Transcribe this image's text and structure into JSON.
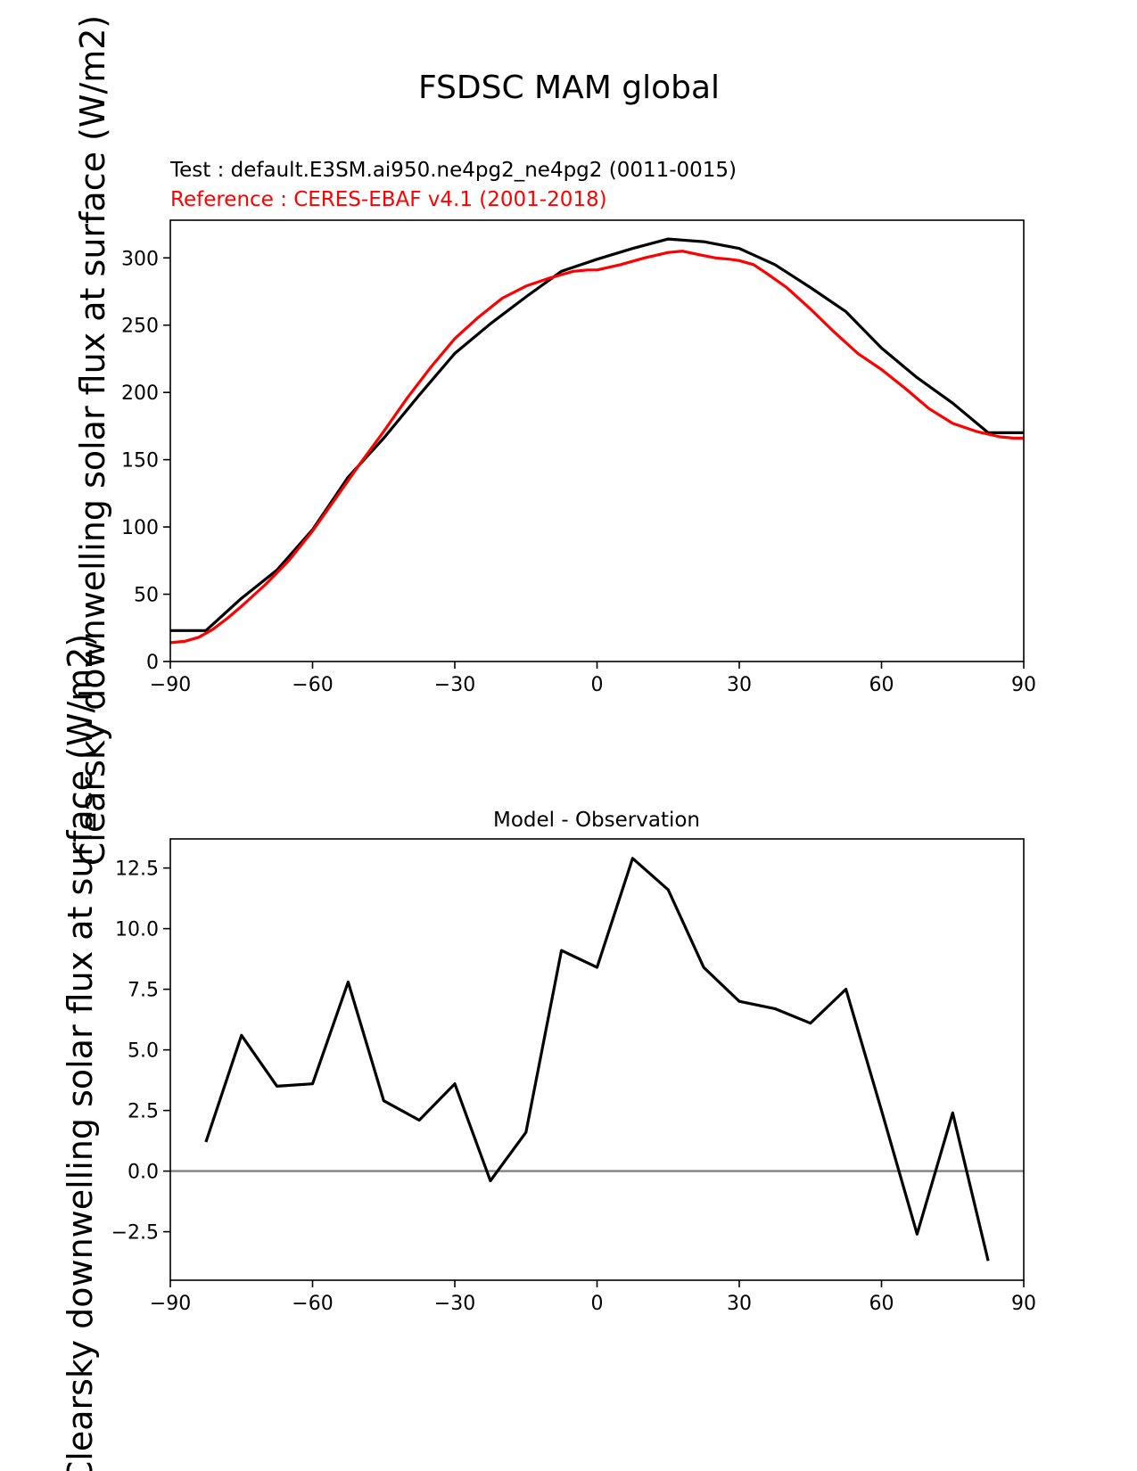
{
  "figure": {
    "title": "FSDSC MAM global"
  },
  "chart_data": [
    {
      "type": "line",
      "test_label": "Test : default.E3SM.ai950.ne4pg2_ne4pg2 (0011-0015)",
      "reference_label": "Reference : CERES-EBAF v4.1 (2001-2018)",
      "ylabel": "Clearsky downwelling solar flux at surface (W/m2)",
      "xlim": [
        -90,
        90
      ],
      "ylim": [
        0,
        328
      ],
      "xticks": [
        -90,
        -60,
        -30,
        0,
        30,
        60,
        90
      ],
      "yticks": [
        0,
        50,
        100,
        150,
        200,
        250,
        300
      ],
      "xtick_labels": [
        "−90",
        "−60",
        "−30",
        "0",
        "30",
        "60",
        "90"
      ],
      "ytick_labels": [
        "0",
        "50",
        "100",
        "150",
        "200",
        "250",
        "300"
      ],
      "series": [
        {
          "name": "Test",
          "color": "#000000",
          "x": [
            -90,
            -82.5,
            -75,
            -67.5,
            -60,
            -52.5,
            -45,
            -37.5,
            -30,
            -22.5,
            -15,
            -7.5,
            0,
            7.5,
            15,
            22.5,
            30,
            37.5,
            45,
            52.5,
            60,
            67.5,
            75,
            82.5,
            90
          ],
          "y": [
            23,
            23,
            47,
            68,
            98,
            137,
            166,
            198,
            229,
            251,
            271,
            290,
            299,
            307,
            314,
            312,
            307,
            295,
            278,
            260,
            233,
            211,
            192,
            170,
            170
          ]
        },
        {
          "name": "Reference",
          "color": "#ff0000",
          "x": [
            -90,
            -87,
            -84,
            -81,
            -78,
            -75,
            -70,
            -65,
            -60,
            -55,
            -50,
            -45,
            -40,
            -35,
            -30,
            -25,
            -20,
            -15,
            -10,
            -5,
            -2,
            0,
            5,
            10,
            15,
            18,
            22,
            25,
            28,
            30,
            33,
            36,
            40,
            45,
            50,
            55,
            60,
            65,
            70,
            75,
            80,
            85,
            88,
            90
          ],
          "y": [
            14,
            15,
            18,
            24,
            32,
            41,
            57,
            75,
            97,
            122,
            147,
            171,
            196,
            219,
            240,
            256,
            270,
            279,
            285,
            290,
            291,
            291,
            295,
            300,
            304,
            305,
            302,
            300,
            299,
            298,
            295,
            288,
            278,
            262,
            245,
            229,
            217,
            203,
            188,
            177,
            171,
            167,
            166,
            166
          ]
        }
      ]
    },
    {
      "type": "line",
      "title": "Model - Observation",
      "ylabel": "Clearsky downwelling solar flux at surface (W/m2)",
      "xlim": [
        -90,
        90
      ],
      "ylim": [
        -4.5,
        13.7
      ],
      "xticks": [
        -90,
        -60,
        -30,
        0,
        30,
        60,
        90
      ],
      "yticks": [
        -2.5,
        0,
        2.5,
        5,
        7.5,
        10,
        12.5
      ],
      "xtick_labels": [
        "−90",
        "−60",
        "−30",
        "0",
        "30",
        "60",
        "90"
      ],
      "ytick_labels": [
        "−2.5",
        "0.0",
        "2.5",
        "5.0",
        "7.5",
        "10.0",
        "12.5"
      ],
      "zero_line_color": "#808080",
      "series": [
        {
          "name": "Model - Observation",
          "color": "#000000",
          "x": [
            -82.5,
            -75,
            -67.5,
            -60,
            -52.5,
            -45,
            -37.5,
            -30,
            -22.5,
            -15,
            -7.5,
            0,
            7.5,
            15,
            22.5,
            30,
            37.5,
            45,
            52.5,
            60,
            67.5,
            75,
            82.5
          ],
          "y": [
            1.2,
            5.6,
            3.5,
            3.6,
            7.8,
            2.9,
            2.1,
            3.6,
            -0.4,
            1.6,
            9.1,
            8.4,
            12.9,
            11.6,
            8.4,
            7.0,
            6.7,
            6.1,
            7.5,
            2.5,
            -2.6,
            2.4,
            -3.7
          ]
        }
      ]
    }
  ]
}
